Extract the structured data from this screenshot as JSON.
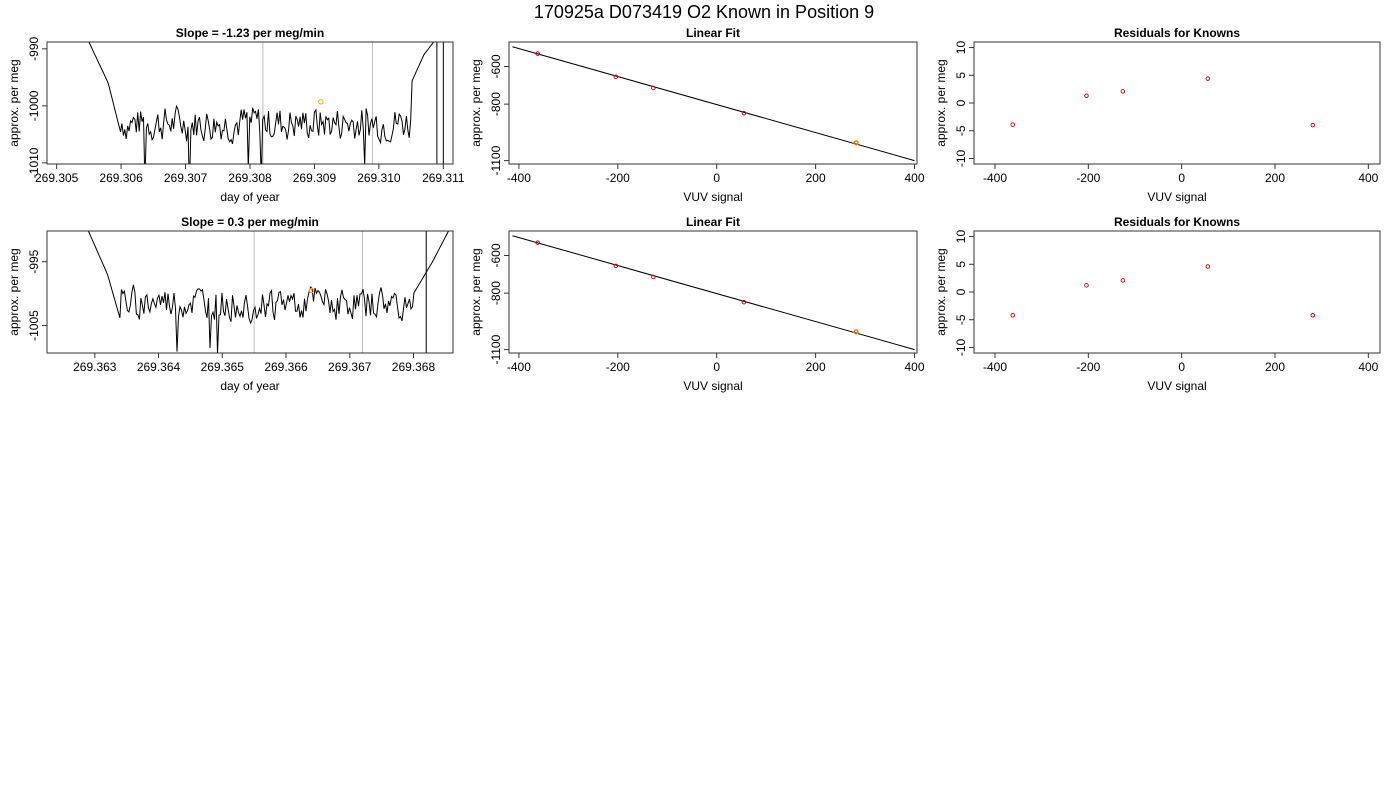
{
  "figure_title": "170925a      D073419   O2 Known in Position  9",
  "colors": {
    "trace": "#000000",
    "vline": "#bebebe",
    "knowns": "#cc0000",
    "highlight": "#ffa500",
    "fit": "#000000"
  },
  "chart_data": [
    {
      "id": "ts1",
      "type": "line",
      "title": "Slope =  -1.23  per meg/min",
      "xlabel": "day of year",
      "ylabel": "approx. per meg",
      "xlim": [
        269.30485,
        269.31115
      ],
      "ylim": [
        -1010.2,
        -988.8
      ],
      "xticks": [
        "269.305",
        "269.306",
        "269.307",
        "269.308",
        "269.309",
        "269.310",
        "269.311"
      ],
      "yticks": [
        "-1010",
        "-1000",
        "-990"
      ],
      "vlines": [
        269.3082,
        269.3099
      ],
      "highlight_point": {
        "x": 269.3091,
        "y": -999.3
      },
      "steep_segments": [
        [
          269.3109,
          269.3109
        ],
        [
          269.311,
          269.311
        ]
      ],
      "trace": {
        "t_start": 269.3055,
        "t_end": 269.31085,
        "n": 240,
        "shape_start": [
          [
            269.3055,
            -988.8
          ],
          [
            269.3058,
            -996
          ],
          [
            269.306,
            -1005
          ]
        ],
        "shape_end": [
          [
            269.3105,
            -996
          ],
          [
            269.3107,
            -991
          ],
          [
            269.31085,
            -988.8
          ]
        ],
        "base": -1003,
        "trend": 0.0006,
        "amp": 2.8,
        "seed": 7
      }
    },
    {
      "id": "fit1",
      "type": "scatter",
      "title": "Linear Fit",
      "xlabel": "VUV signal",
      "ylabel": "approx. per meg",
      "xlim": [
        -420,
        405
      ],
      "ylim": [
        -1118,
        -470
      ],
      "xticks": [
        "-400",
        "-200",
        "0",
        "200",
        "400"
      ],
      "yticks": [
        "-1100",
        "-800",
        "-600"
      ],
      "fit_line": {
        "x0": -413,
        "y0": -495,
        "x1": 400,
        "y1": -1100
      },
      "points": [
        {
          "x": -362,
          "y": -532
        },
        {
          "x": -204,
          "y": -655
        },
        {
          "x": -128,
          "y": -714
        },
        {
          "x": 55,
          "y": -848
        },
        {
          "x": 282,
          "y": -1005
        }
      ],
      "highlight_point": {
        "x": 282,
        "y": -1005
      }
    },
    {
      "id": "res1",
      "type": "scatter",
      "title": "Residuals for Knowns",
      "xlabel": "VUV signal",
      "ylabel": "approx. per meg",
      "xlim": [
        -445,
        425
      ],
      "ylim": [
        -11,
        11
      ],
      "xticks": [
        "-400",
        "-200",
        "0",
        "200",
        "400"
      ],
      "yticks": [
        "-10",
        "-5",
        "0",
        "5",
        "10"
      ],
      "points": [
        {
          "x": -362,
          "y": -3.9
        },
        {
          "x": -204,
          "y": 1.3
        },
        {
          "x": -126,
          "y": 2.1
        },
        {
          "x": 56,
          "y": 4.4
        },
        {
          "x": 281,
          "y": -4.0
        }
      ]
    },
    {
      "id": "ts2",
      "type": "line",
      "title": "Slope =  0.3  per meg/min",
      "xlabel": "day of year",
      "ylabel": "approx. per meg",
      "xlim": [
        269.36225,
        269.36862
      ],
      "ylim": [
        -1009.3,
        -990.2
      ],
      "xticks": [
        "269.363",
        "269.364",
        "269.365",
        "269.366",
        "269.367",
        "269.368"
      ],
      "yticks": [
        "-1005",
        "-995"
      ],
      "vlines": [
        269.3655,
        269.3672
      ],
      "highlight_point": {
        "x": 269.3664,
        "y": -999.5
      },
      "steep_segments": [
        [
          269.3682,
          269.3682
        ]
      ],
      "trace": {
        "t_start": 269.3629,
        "t_end": 269.36855,
        "n": 240,
        "shape_start": [
          [
            269.3629,
            -990.2
          ],
          [
            269.3632,
            -997
          ],
          [
            269.3634,
            -1004
          ]
        ],
        "shape_end": [
          [
            269.368,
            -1000
          ],
          [
            269.3683,
            -995
          ],
          [
            269.36855,
            -990.2
          ]
        ],
        "base": -1001.5,
        "trend": 0.0,
        "amp": 2.3,
        "seed": 19
      }
    },
    {
      "id": "fit2",
      "type": "scatter",
      "title": "Linear Fit",
      "xlabel": "VUV signal",
      "ylabel": "approx. per meg",
      "xlim": [
        -420,
        405
      ],
      "ylim": [
        -1118,
        -470
      ],
      "xticks": [
        "-400",
        "-200",
        "0",
        "200",
        "400"
      ],
      "yticks": [
        "-1100",
        "-800",
        "-600"
      ],
      "fit_line": {
        "x0": -413,
        "y0": -495,
        "x1": 400,
        "y1": -1100
      },
      "points": [
        {
          "x": -362,
          "y": -532
        },
        {
          "x": -204,
          "y": -655
        },
        {
          "x": -128,
          "y": -714
        },
        {
          "x": 55,
          "y": -848
        },
        {
          "x": 282,
          "y": -1005
        }
      ],
      "highlight_point": {
        "x": 282,
        "y": -1005
      }
    },
    {
      "id": "res2",
      "type": "scatter",
      "title": "Residuals for Knowns",
      "xlabel": "VUV signal",
      "ylabel": "approx. per meg",
      "xlim": [
        -445,
        425
      ],
      "ylim": [
        -11,
        11
      ],
      "xticks": [
        "-400",
        "-200",
        "0",
        "200",
        "400"
      ],
      "yticks": [
        "-10",
        "-5",
        "0",
        "5",
        "10"
      ],
      "points": [
        {
          "x": -362,
          "y": -4.2
        },
        {
          "x": -204,
          "y": 1.2
        },
        {
          "x": -126,
          "y": 2.1
        },
        {
          "x": 56,
          "y": 4.6
        },
        {
          "x": 281,
          "y": -4.2
        }
      ]
    }
  ]
}
